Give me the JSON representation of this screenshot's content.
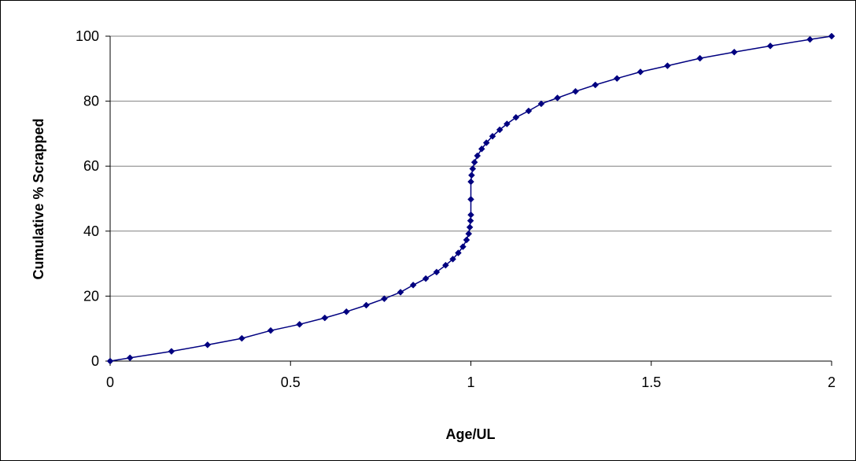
{
  "chart_data": {
    "type": "line",
    "title": "",
    "xlabel": "Age/UL",
    "ylabel": "Cumulative % Scrapped",
    "xlim": [
      0,
      2
    ],
    "ylim": [
      0,
      100
    ],
    "x_ticks": [
      "0",
      "0.5",
      "1",
      "1.5",
      "2"
    ],
    "y_ticks": [
      "0",
      "20",
      "40",
      "60",
      "80",
      "100"
    ],
    "grid": "horizontal",
    "legend": "none",
    "colors": {
      "series": "#000080",
      "gridline": "#808080",
      "axis": "#000000"
    },
    "series": [
      {
        "marker": "diamond",
        "points": [
          [
            0.0,
            0.0
          ],
          [
            0.055,
            1.0
          ],
          [
            0.17,
            3.0
          ],
          [
            0.27,
            5.0
          ],
          [
            0.365,
            7.0
          ],
          [
            0.445,
            9.4
          ],
          [
            0.525,
            11.3
          ],
          [
            0.595,
            13.3
          ],
          [
            0.655,
            15.2
          ],
          [
            0.71,
            17.2
          ],
          [
            0.76,
            19.2
          ],
          [
            0.805,
            21.2
          ],
          [
            0.84,
            23.4
          ],
          [
            0.875,
            25.4
          ],
          [
            0.905,
            27.4
          ],
          [
            0.93,
            29.5
          ],
          [
            0.95,
            31.4
          ],
          [
            0.965,
            33.3
          ],
          [
            0.978,
            35.2
          ],
          [
            0.988,
            37.3
          ],
          [
            0.994,
            39.2
          ],
          [
            0.997,
            41.2
          ],
          [
            0.999,
            43.2
          ],
          [
            1.0,
            45.0
          ],
          [
            1.0,
            49.8
          ],
          [
            1.0,
            55.2
          ],
          [
            1.002,
            57.2
          ],
          [
            1.005,
            59.2
          ],
          [
            1.01,
            61.2
          ],
          [
            1.018,
            63.2
          ],
          [
            1.03,
            65.3
          ],
          [
            1.043,
            67.2
          ],
          [
            1.06,
            69.2
          ],
          [
            1.08,
            71.2
          ],
          [
            1.1,
            73.0
          ],
          [
            1.125,
            75.0
          ],
          [
            1.16,
            77.0
          ],
          [
            1.195,
            79.2
          ],
          [
            1.24,
            81.0
          ],
          [
            1.29,
            83.0
          ],
          [
            1.345,
            85.0
          ],
          [
            1.405,
            87.0
          ],
          [
            1.47,
            89.0
          ],
          [
            1.545,
            90.9
          ],
          [
            1.635,
            93.2
          ],
          [
            1.73,
            95.1
          ],
          [
            1.83,
            97.0
          ],
          [
            1.94,
            99.0
          ],
          [
            2.0,
            100.0
          ]
        ]
      }
    ]
  }
}
